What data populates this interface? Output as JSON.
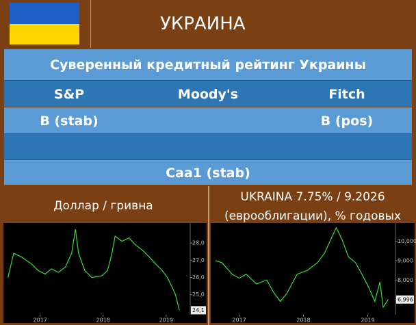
{
  "header": {
    "title": "УКРАИНА"
  },
  "table": {
    "title": "Суверенный кредитный рейтинг Украины",
    "columns": [
      "S&P",
      "Moody's",
      "Fitch"
    ],
    "rows": [
      [
        "B (stab)",
        null,
        "B (pos)"
      ]
    ],
    "moodys_rating": "Caa1 (stab)"
  },
  "chart_data": [
    {
      "type": "line",
      "title": [
        "Доллар / гривна"
      ],
      "color": "#33e033",
      "grid": false,
      "x": [
        2016.49,
        2016.58,
        2016.7,
        2016.86,
        2016.97,
        2017.08,
        2017.18,
        2017.29,
        2017.4,
        2017.5,
        2017.56,
        2017.61,
        2017.71,
        2017.82,
        2017.98,
        2018.07,
        2018.14,
        2018.19,
        2018.3,
        2018.41,
        2018.51,
        2018.62,
        2018.73,
        2018.83,
        2018.94,
        2019.02,
        2019.1,
        2019.15,
        2019.21
      ],
      "values": [
        26.0,
        27.4,
        27.2,
        26.8,
        26.4,
        26.2,
        26.5,
        26.3,
        26.6,
        27.4,
        28.8,
        27.4,
        26.4,
        26.0,
        26.1,
        26.4,
        27.4,
        28.4,
        28.1,
        28.3,
        27.9,
        27.6,
        27.2,
        26.8,
        26.4,
        26.0,
        25.4,
        25.0,
        24.1
      ],
      "value_labels": [
        null,
        null,
        null,
        null,
        null,
        null,
        null,
        null,
        null,
        null,
        null,
        null,
        null,
        null,
        null,
        null,
        null,
        null,
        null,
        null,
        null,
        null,
        null,
        null,
        null,
        null,
        null,
        null,
        "24,1"
      ],
      "xlim": [
        2016.45,
        2019.35
      ],
      "xticks": [
        2017,
        2018,
        2019
      ],
      "ylim": [
        23.6,
        29.0
      ],
      "yticks": [
        {
          "value": 25,
          "label": "25,0"
        },
        {
          "value": 26,
          "label": "26,0"
        },
        {
          "value": 27,
          "label": "27,0"
        },
        {
          "value": 28,
          "label": "28,0"
        }
      ]
    },
    {
      "type": "line",
      "title": [
        "UKRAINA 7.75% / 9.2026",
        "(еврооблигации), % годовых"
      ],
      "color": "#33e033",
      "grid": false,
      "x": [
        2016.63,
        2016.73,
        2016.89,
        2017.0,
        2017.11,
        2017.27,
        2017.43,
        2017.53,
        2017.64,
        2017.74,
        2017.9,
        2018.06,
        2018.22,
        2018.33,
        2018.44,
        2018.51,
        2018.6,
        2018.7,
        2018.81,
        2018.91,
        2019.02,
        2019.11,
        2019.19,
        2019.24,
        2019.32
      ],
      "values": [
        9.0,
        8.9,
        8.3,
        8.1,
        8.3,
        7.8,
        8.0,
        7.4,
        6.9,
        7.3,
        8.3,
        8.5,
        8.9,
        9.4,
        10.2,
        10.7,
        10.1,
        9.2,
        8.9,
        8.3,
        7.6,
        6.9,
        7.9,
        6.6,
        6.996
      ],
      "value_labels": [
        null,
        null,
        null,
        null,
        null,
        null,
        null,
        null,
        null,
        null,
        null,
        null,
        null,
        null,
        null,
        null,
        null,
        null,
        null,
        null,
        null,
        null,
        null,
        null,
        "6,996"
      ],
      "xlim": [
        2016.6,
        2019.4
      ],
      "xticks": [
        2017,
        2018,
        2019
      ],
      "ylim": [
        6.0,
        10.8
      ],
      "yticks": [
        {
          "value": 7,
          "label": "7,000"
        },
        {
          "value": 8,
          "label": "8,000"
        },
        {
          "value": 9,
          "label": "9,000"
        },
        {
          "value": 10,
          "label": "10,000"
        }
      ]
    }
  ]
}
